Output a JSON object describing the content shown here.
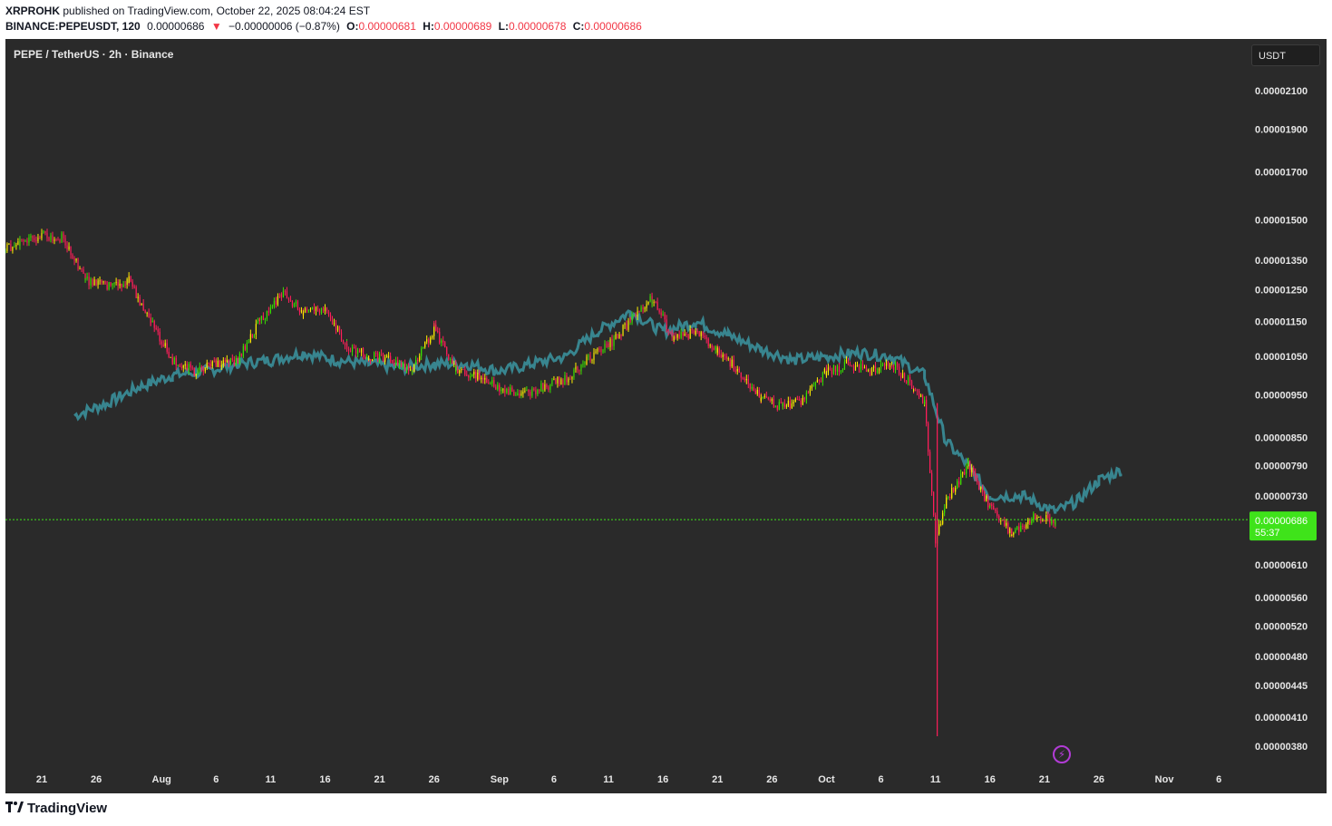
{
  "header": {
    "author": "XRPROHK",
    "published_text": "published on TradingView.com, October 22, 2025 08:04:24 EST",
    "symbol": "BINANCE:PEPEUSDT, 120",
    "last_price": "0.00000686",
    "change_arrow": "▼",
    "change": "−0.00000006 (−0.87%)",
    "o_label": "O:",
    "o_value": "0.00000681",
    "h_label": "H:",
    "h_value": "0.00000689",
    "l_label": "L:",
    "l_value": "0.00000678",
    "c_label": "C:",
    "c_value": "0.00000686"
  },
  "pane": {
    "title": "PEPE / TetherUS · 2h · Binance",
    "currency": "USDT"
  },
  "colors": {
    "background": "#2a2a2a",
    "candle_up": "#ffee00",
    "candle_down": "#ff1e5a",
    "candle_up_alt": "#39e000",
    "overlay": "#3a8f9a",
    "price_label_bg": "#3fe31a",
    "price_line": "#3fe31a",
    "text_light": "#e6e6e6"
  },
  "price_label": {
    "price": "0.00000686",
    "countdown": "55:37"
  },
  "footer": {
    "brand": "TradingView",
    "icon": "tradingview-logo-icon",
    "flash_icon": "lightning-icon"
  },
  "chart_data": {
    "type": "candlestick",
    "title": "PEPE / TetherUS · 2h · Binance",
    "y_scale": "log",
    "ylim": [
      3.6e-06,
      2.25e-05
    ],
    "y_ticks": [
      "0.00002100",
      "0.00001900",
      "0.00001700",
      "0.00001500",
      "0.00001350",
      "0.00001250",
      "0.00001150",
      "0.00001050",
      "0.00000950",
      "0.00000850",
      "0.00000790",
      "0.00000730",
      "0.00000610",
      "0.00000560",
      "0.00000520",
      "0.00000480",
      "0.00000445",
      "0.00000410",
      "0.00000380"
    ],
    "x_ticks": [
      "21",
      "26",
      "Aug",
      "6",
      "11",
      "16",
      "21",
      "26",
      "Sep",
      "6",
      "11",
      "16",
      "21",
      "26",
      "Oct",
      "6",
      "11",
      "16",
      "21",
      "26",
      "Nov",
      "6"
    ],
    "series": [
      {
        "name": "PEPEUSDT",
        "kind": "candles",
        "dates": [
          "Jul 17",
          "Jul 19",
          "Jul 21",
          "Jul 23",
          "Jul 25",
          "Jul 27",
          "Jul 29",
          "Jul 31",
          "Aug 2",
          "Aug 4",
          "Aug 6",
          "Aug 8",
          "Aug 10",
          "Aug 12",
          "Aug 14",
          "Aug 16",
          "Aug 18",
          "Aug 20",
          "Aug 22",
          "Aug 24",
          "Aug 26",
          "Aug 28",
          "Aug 30",
          "Sep 1",
          "Sep 3",
          "Sep 5",
          "Sep 7",
          "Sep 9",
          "Sep 11",
          "Sep 13",
          "Sep 15",
          "Sep 17",
          "Sep 19",
          "Sep 21",
          "Sep 23",
          "Sep 25",
          "Sep 27",
          "Sep 29",
          "Oct 1",
          "Oct 3",
          "Oct 5",
          "Oct 7",
          "Oct 9",
          "Oct 10",
          "Oct 11",
          "Oct 12",
          "Oct 14",
          "Oct 16",
          "Oct 18",
          "Oct 20",
          "Oct 22"
        ],
        "close": [
          1.38e-05,
          1.41e-05,
          1.44e-05,
          1.43e-05,
          1.28e-05,
          1.26e-05,
          1.28e-05,
          1.15e-05,
          1.04e-05,
          1.01e-05,
          1.03e-05,
          1.04e-05,
          1.15e-05,
          1.24e-05,
          1.18e-05,
          1.19e-05,
          1.08e-05,
          1.05e-05,
          1.04e-05,
          1.02e-05,
          1.13e-05,
          1.01e-05,
          1e-05,
          9.7e-06,
          9.5e-06,
          9.7e-06,
          9.9e-06,
          1.04e-05,
          1.08e-05,
          1.15e-05,
          1.22e-05,
          1.1e-05,
          1.12e-05,
          1.07e-05,
          1.01e-05,
          9.4e-06,
          9.2e-06,
          9.4e-06,
          1.01e-05,
          1.03e-05,
          1.01e-05,
          1.03e-05,
          9.7e-06,
          9.3e-06,
          6.5e-06,
          7.2e-06,
          7.9e-06,
          7.1e-06,
          6.6e-06,
          6.9e-06,
          6.86e-06
        ],
        "low_of_period": 3.9e-06
      },
      {
        "name": "overlay",
        "kind": "line",
        "dates": [
          "Jul 24",
          "Jul 27",
          "Jul 30",
          "Aug 2",
          "Aug 5",
          "Aug 8",
          "Aug 11",
          "Aug 14",
          "Aug 17",
          "Aug 20",
          "Aug 23",
          "Aug 26",
          "Aug 29",
          "Sep 1",
          "Sep 4",
          "Sep 7",
          "Sep 10",
          "Sep 13",
          "Sep 16",
          "Sep 19",
          "Sep 22",
          "Sep 25",
          "Sep 28",
          "Oct 1",
          "Oct 4",
          "Oct 7",
          "Oct 10",
          "Oct 12",
          "Oct 14",
          "Oct 16",
          "Oct 19",
          "Oct 22",
          "Oct 24",
          "Oct 26",
          "Oct 28"
        ],
        "values": [
          9e-06,
          9.3e-06,
          9.7e-06,
          1e-05,
          1.01e-05,
          1.03e-05,
          1.04e-05,
          1.06e-05,
          1.04e-05,
          1.03e-05,
          1.02e-05,
          1.03e-05,
          1.03e-05,
          1.01e-05,
          1.03e-05,
          1.05e-05,
          1.12e-05,
          1.18e-05,
          1.12e-05,
          1.15e-05,
          1.11e-05,
          1.07e-05,
          1.04e-05,
          1.05e-05,
          1.06e-05,
          1.05e-05,
          1e-05,
          8.4e-06,
          7.9e-06,
          7.3e-06,
          7.3e-06,
          7e-06,
          7.2e-06,
          7.6e-06,
          7.8e-06
        ]
      }
    ],
    "current_price": 6.86e-06
  }
}
